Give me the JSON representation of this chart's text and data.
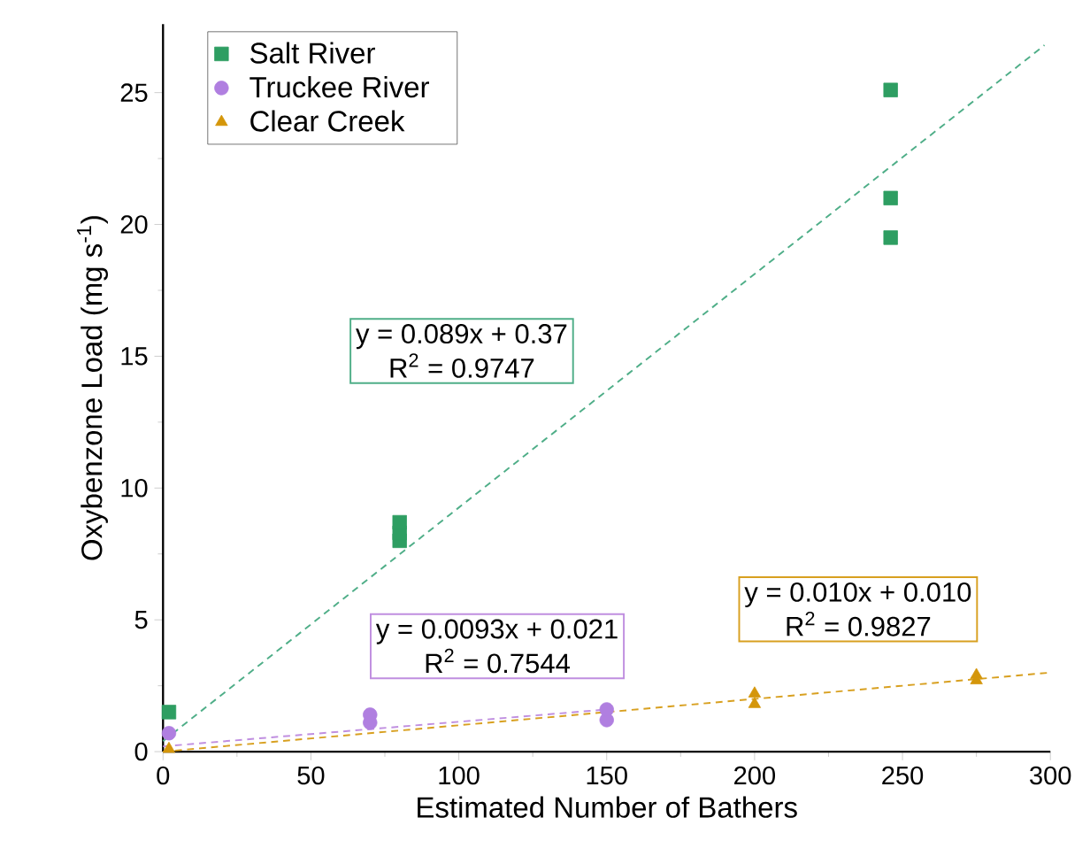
{
  "chart_data": {
    "type": "scatter",
    "xlabel": "Estimated Number of Bathers",
    "ylabel": "Oxybenzone Load (mg s$^{-1}$)",
    "xlim": [
      0,
      300
    ],
    "ylim": [
      0,
      27.6
    ],
    "xticks": [
      0,
      50,
      100,
      150,
      200,
      250,
      300
    ],
    "yticks": [
      0,
      5,
      10,
      15,
      20,
      25
    ],
    "grid": false,
    "legend": "top left",
    "series": [
      {
        "name": "Salt River",
        "color": "#2e9e62",
        "marker": "square",
        "x": [
          2,
          80,
          80,
          80,
          246,
          246,
          246
        ],
        "values": [
          1.5,
          8.0,
          8.3,
          8.7,
          25.1,
          21.0,
          19.5
        ]
      },
      {
        "name": "Truckee River",
        "color": "#b07fe0",
        "marker": "circle",
        "x": [
          2,
          70,
          70,
          150,
          150
        ],
        "values": [
          0.7,
          1.1,
          1.4,
          1.2,
          1.6
        ]
      },
      {
        "name": "Clear Creek",
        "color": "#d4960a",
        "marker": "triangle",
        "x": [
          2,
          200,
          200,
          275,
          275
        ],
        "values": [
          0.1,
          1.8,
          2.2,
          2.7,
          2.9
        ]
      },
      {
        "type": "line",
        "color": "#4fae88",
        "line_style": "dashed",
        "marker": "none",
        "x": [
          0,
          298
        ],
        "values": [
          0.4,
          26.8
        ]
      },
      {
        "type": "line",
        "color": "#c08fe0",
        "line_style": "dashed",
        "marker": "none",
        "x": [
          0,
          150
        ],
        "values": [
          0.2,
          1.6
        ]
      },
      {
        "type": "line",
        "color": "#d8a020",
        "line_style": "dashed",
        "marker": "none",
        "x": [
          0,
          300
        ],
        "values": [
          0.0,
          3.0
        ]
      }
    ],
    "annotations": [
      "y = 0.089x + 0.37",
      "R$^{2}$ = 0.9747",
      "y = 0.0093x + 0.021",
      "R$^{2}$ = 0.7544",
      "y = 0.010x + 0.010",
      "R$^{2}$ = 0.9827"
    ]
  }
}
